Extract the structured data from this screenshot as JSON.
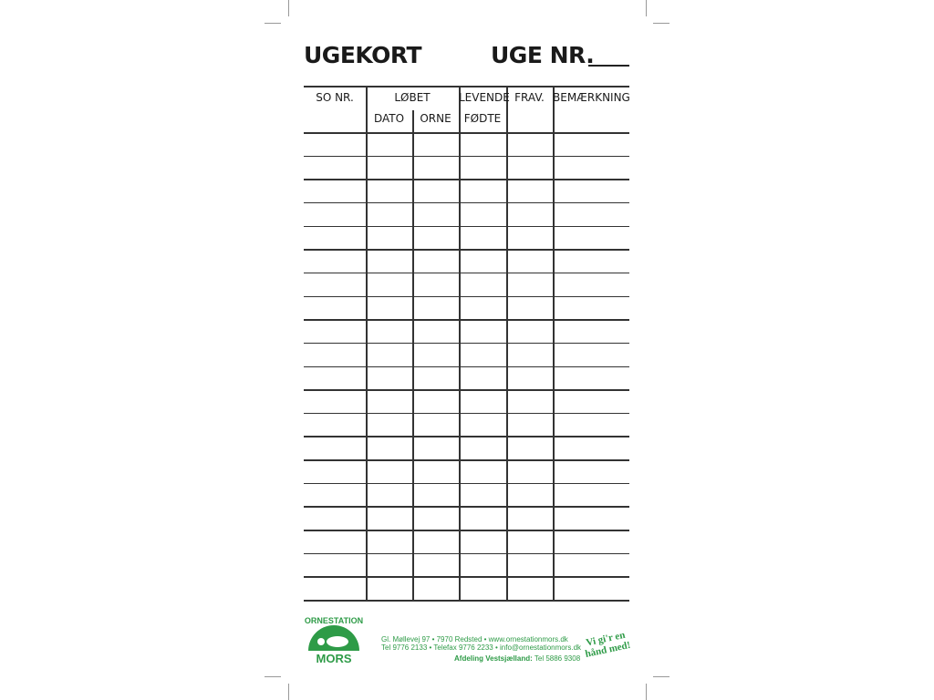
{
  "header": {
    "title": "UGEKORT",
    "week_label": "UGE NR."
  },
  "table": {
    "columns": [
      {
        "label": "SO NR."
      },
      {
        "label": "LØBET",
        "sub": [
          "DATO",
          "ORNE"
        ]
      },
      {
        "label": "LEVENDE",
        "label2": "FØDTE"
      },
      {
        "label": "FRAV."
      },
      {
        "label": "BEMÆRKNING"
      }
    ],
    "empty_rows": 20
  },
  "footer": {
    "logo_text_top": "ORNESTATION",
    "logo_text_bottom": "MORS",
    "address": "Gl. Møllevej 97 • 7970 Redsted • www.ornestationmors.dk",
    "contact": "Tel 9776 2133 • Telefax 9776 2233 • info@ornestationmors.dk",
    "branch_label": "Afdeling Vestsjælland:",
    "branch_phone": "Tel 5886 9308",
    "slogan_1": "Vi gi'r en",
    "slogan_2": "hånd med!"
  },
  "colors": {
    "brand_green": "#2e9b47",
    "ink": "#1a1a1a"
  }
}
